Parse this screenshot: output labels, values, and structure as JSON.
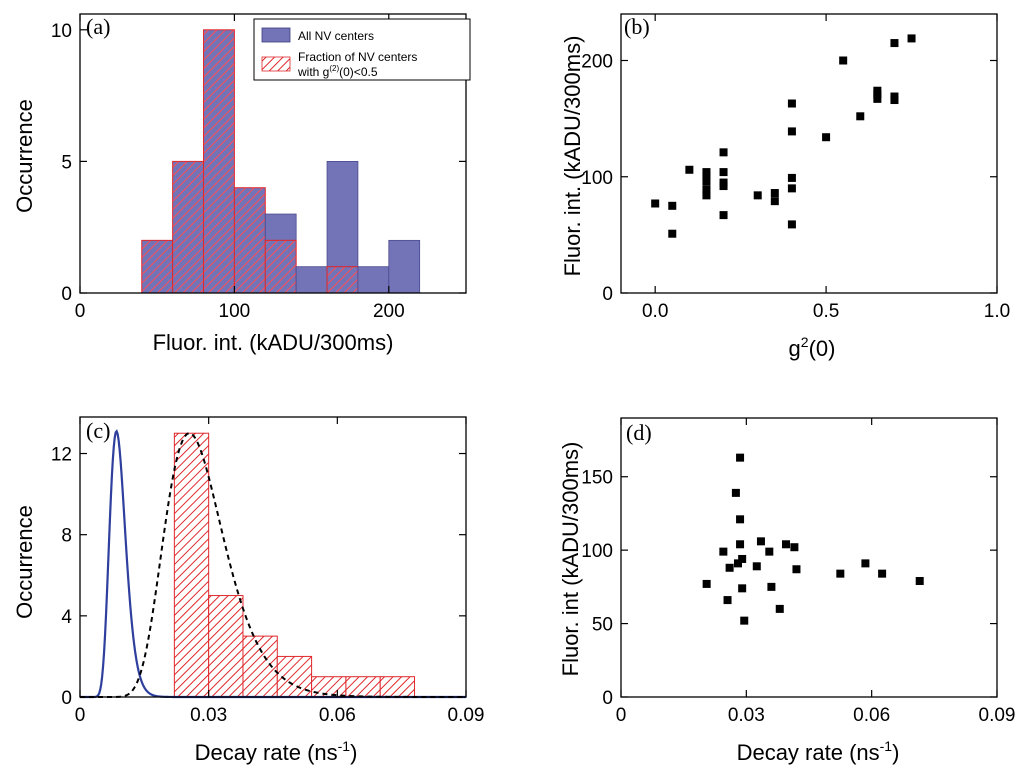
{
  "chart_data": [
    {
      "panel": "(a)",
      "type": "bar",
      "xlabel": "Fluor. int. (kADU/300ms)",
      "ylabel": "Occurrence",
      "xlim": [
        0,
        250
      ],
      "ylim": [
        0,
        10.6
      ],
      "xticks": [
        0,
        100,
        200
      ],
      "yticks": [
        0,
        5,
        10
      ],
      "bin_width": 20,
      "legend": {
        "position": "top-right",
        "entries": [
          "All NV centers",
          "Fraction of NV centers",
          "with g(2)(0)<0.5"
        ]
      },
      "series": [
        {
          "name": "All NV centers",
          "color": "#7373b8",
          "bin_starts": [
            40,
            60,
            80,
            100,
            120,
            140,
            160,
            180,
            200
          ],
          "values": [
            2,
            5,
            10,
            4,
            3,
            1,
            5,
            1,
            2
          ]
        },
        {
          "name": "Fraction of NV centers with g(2)(0)<0.5",
          "color": "#e0282c",
          "bin_starts": [
            40,
            60,
            80,
            100,
            120,
            140,
            160,
            180,
            200
          ],
          "values": [
            2,
            5,
            10,
            4,
            2,
            0,
            1,
            0,
            0
          ]
        }
      ]
    },
    {
      "panel": "(b)",
      "type": "scatter",
      "xlabel": "g",
      "xlabel_sup": "2",
      "xlabel_tail": "(0)",
      "ylabel": "Fluor. int. (kADU/300ms)",
      "xlim": [
        -0.1,
        1.0
      ],
      "ylim": [
        0,
        240
      ],
      "xticks": [
        0.0,
        0.5,
        1.0
      ],
      "xtick_labels": [
        "0.0",
        "0.5",
        "1.0"
      ],
      "yticks": [
        0,
        100,
        200
      ],
      "points": [
        [
          0.0,
          77
        ],
        [
          0.05,
          75
        ],
        [
          0.05,
          51
        ],
        [
          0.1,
          106
        ],
        [
          0.15,
          104
        ],
        [
          0.15,
          101
        ],
        [
          0.15,
          96
        ],
        [
          0.15,
          89
        ],
        [
          0.15,
          84
        ],
        [
          0.2,
          121
        ],
        [
          0.2,
          104
        ],
        [
          0.2,
          95
        ],
        [
          0.2,
          92
        ],
        [
          0.2,
          67
        ],
        [
          0.3,
          84
        ],
        [
          0.35,
          86
        ],
        [
          0.35,
          79
        ],
        [
          0.4,
          163
        ],
        [
          0.4,
          139
        ],
        [
          0.4,
          99
        ],
        [
          0.4,
          90
        ],
        [
          0.4,
          59
        ],
        [
          0.5,
          134
        ],
        [
          0.55,
          200
        ],
        [
          0.6,
          152
        ],
        [
          0.65,
          174
        ],
        [
          0.65,
          171
        ],
        [
          0.65,
          167
        ],
        [
          0.7,
          215
        ],
        [
          0.7,
          169
        ],
        [
          0.7,
          166
        ],
        [
          0.75,
          219
        ]
      ]
    },
    {
      "panel": "(c)",
      "type": "bar",
      "xlabel": "Decay rate (ns",
      "xlabel_sup": "-1",
      "xlabel_tail": ")",
      "ylabel": "Occurrence",
      "xlim": [
        0,
        0.09
      ],
      "ylim": [
        0,
        13.8
      ],
      "xticks": [
        0,
        0.03,
        0.06,
        0.09
      ],
      "xtick_labels": [
        "0",
        "0.03",
        "0.06",
        "0.09"
      ],
      "yticks": [
        0,
        4,
        8,
        12
      ],
      "bin_width": 0.008,
      "series": [
        {
          "name": "",
          "color": "#e0282c",
          "bin_starts": [
            0.022,
            0.03,
            0.038,
            0.046,
            0.054,
            0.062,
            0.07
          ],
          "values": [
            13,
            5,
            3,
            2,
            1,
            1,
            1
          ]
        }
      ],
      "curves": [
        {
          "style": "solid",
          "color": "#2e3f9e",
          "peak_x": 0.0085,
          "peak_y": 13.1,
          "sigma_log": 0.22
        },
        {
          "style": "dashed",
          "color": "#000000",
          "peak_x": 0.0255,
          "peak_y": 13.0,
          "sigma_log": 0.27
        }
      ]
    },
    {
      "panel": "(d)",
      "type": "scatter",
      "xlabel": "Decay rate (ns",
      "xlabel_sup": "-1",
      "xlabel_tail": ")",
      "ylabel": "Fluor. int (kADU/300ms)",
      "xlim": [
        0,
        0.09
      ],
      "ylim": [
        0,
        190
      ],
      "xticks": [
        0,
        0.03,
        0.06,
        0.09
      ],
      "xtick_labels": [
        "0",
        "0.03",
        "0.06",
        "0.09"
      ],
      "yticks": [
        0,
        50,
        100,
        150
      ],
      "points": [
        [
          0.0205,
          77
        ],
        [
          0.0245,
          99
        ],
        [
          0.0255,
          66
        ],
        [
          0.026,
          88
        ],
        [
          0.0275,
          139
        ],
        [
          0.028,
          91
        ],
        [
          0.0285,
          163
        ],
        [
          0.0285,
          121
        ],
        [
          0.0285,
          104
        ],
        [
          0.029,
          94
        ],
        [
          0.029,
          74
        ],
        [
          0.0295,
          52
        ],
        [
          0.0325,
          89
        ],
        [
          0.0335,
          106
        ],
        [
          0.0355,
          99
        ],
        [
          0.036,
          75
        ],
        [
          0.038,
          60
        ],
        [
          0.0395,
          104
        ],
        [
          0.0415,
          102
        ],
        [
          0.042,
          87
        ],
        [
          0.0525,
          84
        ],
        [
          0.0585,
          91
        ],
        [
          0.0625,
          84
        ],
        [
          0.0715,
          79
        ]
      ]
    }
  ]
}
